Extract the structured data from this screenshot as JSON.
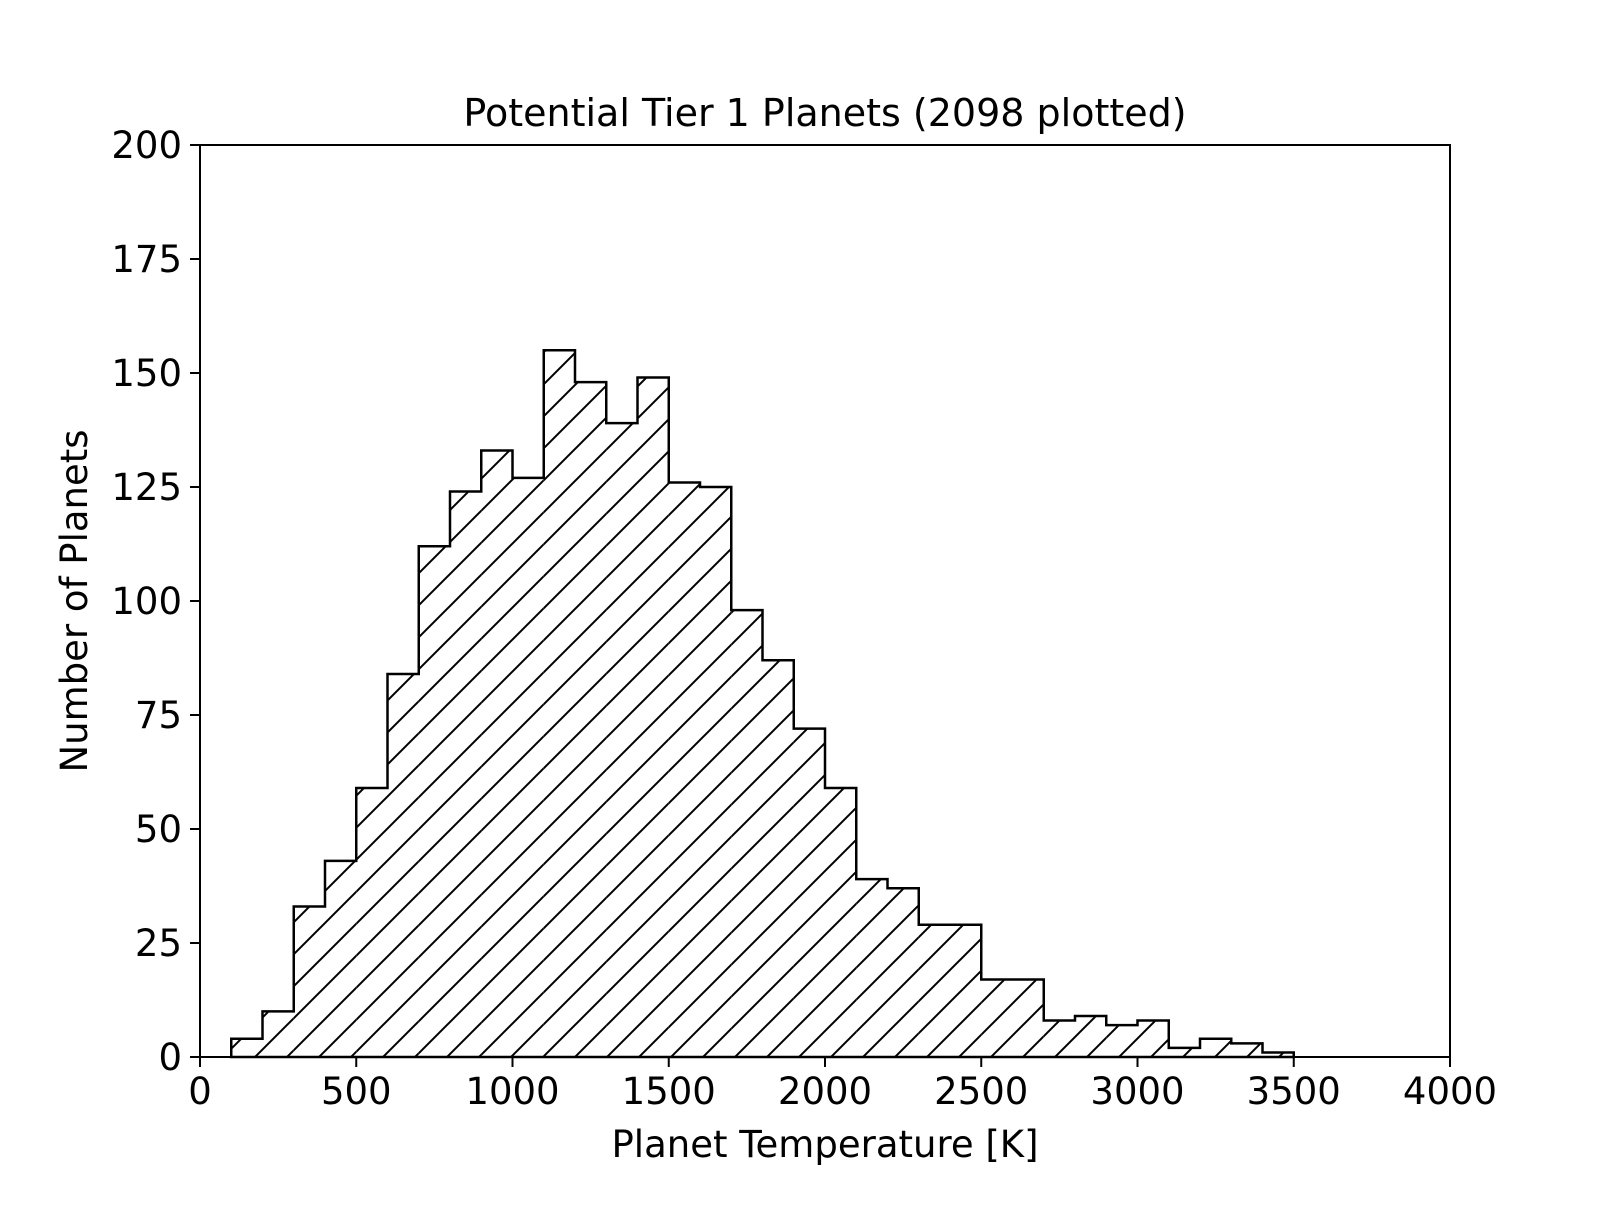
{
  "chart_data": {
    "type": "bar",
    "histtype": "step",
    "hatch": "diagonal",
    "title": "Potential Tier 1 Planets (2098 plotted)",
    "xlabel": "Planet Temperature [K]",
    "ylabel": "Number of Planets",
    "xlim": [
      0,
      4000
    ],
    "ylim": [
      0,
      200
    ],
    "xticks": [
      "0",
      "500",
      "1000",
      "1500",
      "2000",
      "2500",
      "3000",
      "3500",
      "4000"
    ],
    "yticks": [
      "0",
      "25",
      "50",
      "75",
      "100",
      "125",
      "150",
      "175",
      "200"
    ],
    "bin_width": 100,
    "bins": [
      {
        "x0": 100,
        "count": 4
      },
      {
        "x0": 200,
        "count": 10
      },
      {
        "x0": 300,
        "count": 33
      },
      {
        "x0": 400,
        "count": 43
      },
      {
        "x0": 500,
        "count": 59
      },
      {
        "x0": 600,
        "count": 84
      },
      {
        "x0": 700,
        "count": 112
      },
      {
        "x0": 800,
        "count": 124
      },
      {
        "x0": 900,
        "count": 133
      },
      {
        "x0": 1000,
        "count": 127
      },
      {
        "x0": 1100,
        "count": 155
      },
      {
        "x0": 1200,
        "count": 148
      },
      {
        "x0": 1300,
        "count": 139
      },
      {
        "x0": 1400,
        "count": 149
      },
      {
        "x0": 1500,
        "count": 126
      },
      {
        "x0": 1600,
        "count": 125
      },
      {
        "x0": 1700,
        "count": 98
      },
      {
        "x0": 1800,
        "count": 87
      },
      {
        "x0": 1900,
        "count": 72
      },
      {
        "x0": 2000,
        "count": 59
      },
      {
        "x0": 2100,
        "count": 39
      },
      {
        "x0": 2200,
        "count": 37
      },
      {
        "x0": 2300,
        "count": 29
      },
      {
        "x0": 2400,
        "count": 29
      },
      {
        "x0": 2500,
        "count": 17
      },
      {
        "x0": 2600,
        "count": 17
      },
      {
        "x0": 2700,
        "count": 8
      },
      {
        "x0": 2800,
        "count": 9
      },
      {
        "x0": 2900,
        "count": 7
      },
      {
        "x0": 3000,
        "count": 8
      },
      {
        "x0": 3100,
        "count": 2
      },
      {
        "x0": 3200,
        "count": 4
      },
      {
        "x0": 3300,
        "count": 3
      },
      {
        "x0": 3400,
        "count": 1
      }
    ]
  }
}
